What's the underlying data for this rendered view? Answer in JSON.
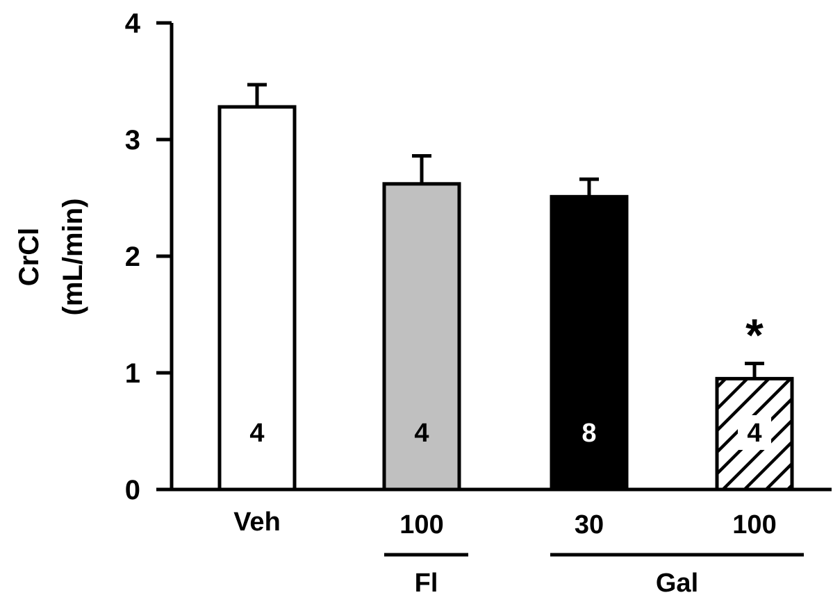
{
  "chart_data": {
    "type": "bar",
    "ylabel_line1": "CrCl",
    "ylabel_line2": "(mL/min)",
    "ylim": [
      0,
      4
    ],
    "yticks": [
      {
        "value": 0,
        "label": "0"
      },
      {
        "value": 1,
        "label": "1"
      },
      {
        "value": 2,
        "label": "2"
      },
      {
        "value": 3,
        "label": "3"
      },
      {
        "value": 4,
        "label": "4"
      }
    ],
    "bars": [
      {
        "category": "Veh",
        "value": 3.28,
        "error": 0.19,
        "n": "4",
        "fill": "#ffffff",
        "n_color": "#000000",
        "pattern": "none",
        "significance": ""
      },
      {
        "category": "100",
        "value": 2.62,
        "error": 0.24,
        "n": "4",
        "fill": "#c0c0c0",
        "n_color": "#000000",
        "pattern": "none",
        "significance": ""
      },
      {
        "category": "30",
        "value": 2.51,
        "error": 0.15,
        "n": "8",
        "fill": "#000000",
        "n_color": "#ffffff",
        "pattern": "none",
        "significance": ""
      },
      {
        "category": "100",
        "value": 0.95,
        "error": 0.13,
        "n": "4",
        "fill": "#ffffff",
        "n_color": "#000000",
        "pattern": "diagonal-hatch",
        "significance": "*"
      }
    ],
    "groups": [
      {
        "label": "Fl",
        "bars": [
          1
        ]
      },
      {
        "label": "Gal",
        "bars": [
          2,
          3
        ]
      }
    ],
    "legend": "none",
    "grid": false
  }
}
